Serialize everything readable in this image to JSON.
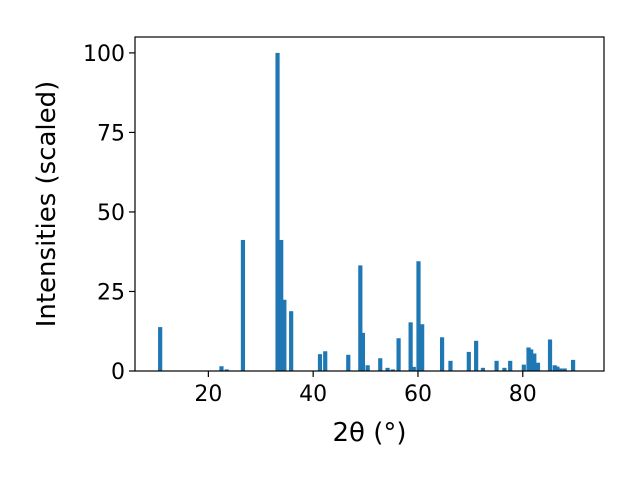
{
  "chart_data": {
    "type": "bar",
    "xlabel": "2θ (°)",
    "ylabel": "Intensities (scaled)",
    "xlim": [
      6.0,
      95.5
    ],
    "ylim": [
      0,
      105
    ],
    "x_ticks": [
      20,
      40,
      60,
      80
    ],
    "y_ticks": [
      0,
      25,
      50,
      75,
      100
    ],
    "grid": false,
    "bar_color": "#1f77b4",
    "bar_width": 0.8,
    "x": [
      10.8,
      22.5,
      23.5,
      26.6,
      33.2,
      33.9,
      34.5,
      35.8,
      41.3,
      42.3,
      46.7,
      49.0,
      49.5,
      50.4,
      52.8,
      54.2,
      55.2,
      56.3,
      58.6,
      59.2,
      60.1,
      60.8,
      64.6,
      66.2,
      69.7,
      71.1,
      72.4,
      75.0,
      76.5,
      77.6,
      80.2,
      81.1,
      81.6,
      82.2,
      82.9,
      85.2,
      86.1,
      86.6,
      87.2,
      88.0,
      89.6
    ],
    "values": [
      13.8,
      1.5,
      0.5,
      41.2,
      100.0,
      41.2,
      22.4,
      18.8,
      5.3,
      6.2,
      5.1,
      33.2,
      12.0,
      1.8,
      4.0,
      1.0,
      0.5,
      10.3,
      15.3,
      1.3,
      34.5,
      14.7,
      10.6,
      3.2,
      6.0,
      9.5,
      1.0,
      3.2,
      1.0,
      3.2,
      2.0,
      7.4,
      6.8,
      5.5,
      2.6,
      9.9,
      1.8,
      1.4,
      0.8,
      0.8,
      3.5
    ]
  }
}
